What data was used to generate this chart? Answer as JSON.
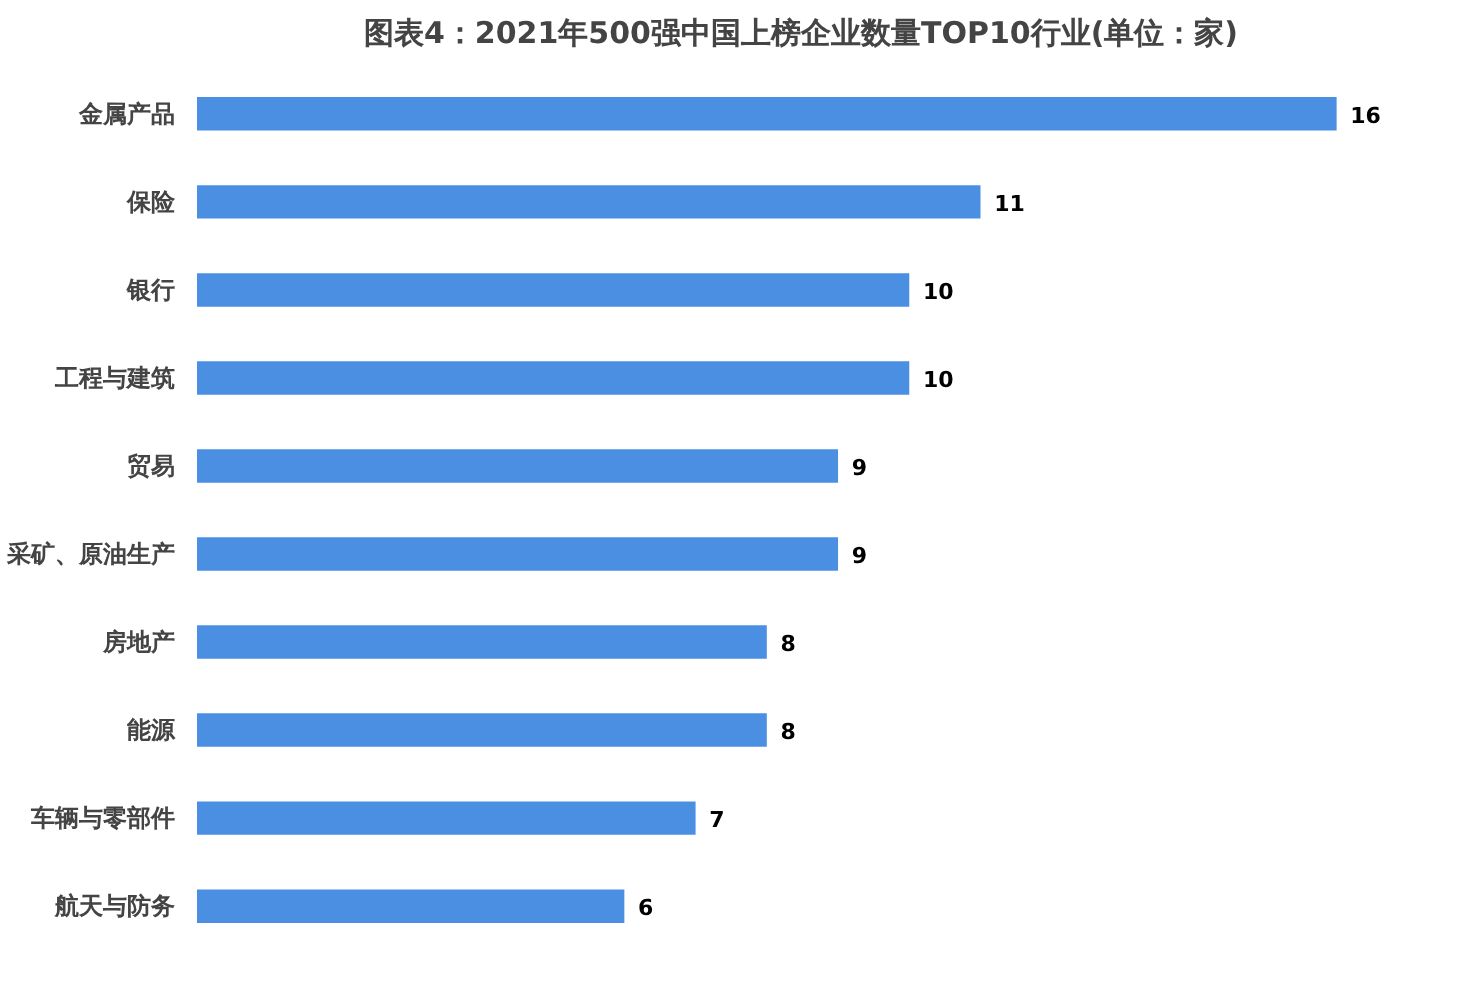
{
  "chart_data": {
    "type": "bar",
    "orientation": "horizontal",
    "title": "图表4：2021年500强中国上榜企业数量TOP10行业(单位：家)",
    "categories": [
      "金属产品",
      "保险",
      "银行",
      "工程与建筑",
      "贸易",
      "采矿、原油生产",
      "房地产",
      "能源",
      "车辆与零部件",
      "航天与防务"
    ],
    "values": [
      16,
      11,
      10,
      10,
      9,
      9,
      8,
      8,
      7,
      6
    ],
    "color": "#4a8fe2",
    "data_labels": true,
    "grid": false,
    "tick_labels": "y"
  }
}
